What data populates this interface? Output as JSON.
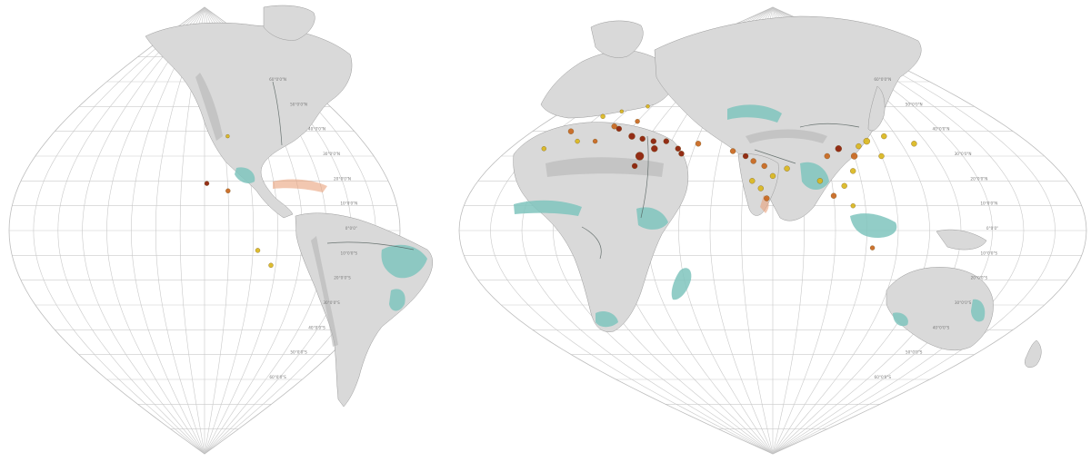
{
  "colors": {
    "site_dark": "#8b1a00",
    "site_orange": "#c8641a",
    "site_yellow": "#d9b61a",
    "teal_region": "#7fc4bd",
    "coast_region": "#e9a27b",
    "land": "#d9d9d9"
  },
  "lat_labels_left": [
    "60°0'0\"N",
    "50°0'0\"N",
    "40°0'0\"N",
    "30°0'0\"N",
    "20°0'0\"N",
    "10°0'0\"N",
    "0°0'0\"",
    "10°0'0\"S",
    "20°0'0\"S",
    "30°0'0\"S",
    "40°0'0\"S",
    "50°0'0\"S",
    "60°0'0\"S"
  ],
  "lat_labels_right": [
    "60°0'0\"N",
    "50°0'0\"N",
    "40°0'0\"N",
    "30°0'0\"N",
    "20°0'0\"N",
    "10°0'0\"N",
    "0°0'0\"",
    "10°0'0\"S",
    "20°0'0\"S",
    "30°0'0\"S",
    "40°0'0\"S",
    "50°0'0\"S",
    "60°0'0\"S"
  ],
  "sites": [
    {
      "lon": 15,
      "lat": 41,
      "class": "dark",
      "size": 3
    },
    {
      "lon": 23,
      "lat": 38,
      "class": "dark",
      "size": 3.5
    },
    {
      "lon": 28,
      "lat": 37,
      "class": "dark",
      "size": 3
    },
    {
      "lon": 33,
      "lat": 36,
      "class": "dark",
      "size": 3
    },
    {
      "lon": 35,
      "lat": 33,
      "class": "dark",
      "size": 3.5
    },
    {
      "lon": 38,
      "lat": 36,
      "class": "dark",
      "size": 3
    },
    {
      "lon": 31,
      "lat": 30,
      "class": "dark",
      "size": 4.5
    },
    {
      "lon": 31,
      "lat": 26,
      "class": "dark",
      "size": 3
    },
    {
      "lon": 44,
      "lat": 33,
      "class": "dark",
      "size": 3
    },
    {
      "lon": 46,
      "lat": 31,
      "class": "dark",
      "size": 3
    },
    {
      "lon": 51,
      "lat": 35,
      "class": "orange",
      "size": 3
    },
    {
      "lon": 12,
      "lat": 42,
      "class": "orange",
      "size": 3
    },
    {
      "lon": -4,
      "lat": 40,
      "class": "orange",
      "size": 3
    },
    {
      "lon": 2,
      "lat": 46,
      "class": "yellow",
      "size": 2.5
    },
    {
      "lon": 8,
      "lat": 48,
      "class": "yellow",
      "size": 2
    },
    {
      "lon": 18,
      "lat": 50,
      "class": "yellow",
      "size": 2
    },
    {
      "lon": 20,
      "lat": 44,
      "class": "orange",
      "size": 2.5
    },
    {
      "lon": 10,
      "lat": 36,
      "class": "orange",
      "size": 2.5
    },
    {
      "lon": 3,
      "lat": 36,
      "class": "yellow",
      "size": 2.5
    },
    {
      "lon": -7,
      "lat": 33,
      "class": "yellow",
      "size": 2.5
    },
    {
      "lon": 65,
      "lat": 32,
      "class": "orange",
      "size": 3
    },
    {
      "lon": 70,
      "lat": 30,
      "class": "dark",
      "size": 3
    },
    {
      "lon": 73,
      "lat": 28,
      "class": "orange",
      "size": 3
    },
    {
      "lon": 77,
      "lat": 26,
      "class": "orange",
      "size": 3
    },
    {
      "lon": 80,
      "lat": 22,
      "class": "yellow",
      "size": 3
    },
    {
      "lon": 76,
      "lat": 17,
      "class": "yellow",
      "size": 3
    },
    {
      "lon": 78,
      "lat": 13,
      "class": "orange",
      "size": 3
    },
    {
      "lon": 73,
      "lat": 20,
      "class": "yellow",
      "size": 3
    },
    {
      "lon": 85,
      "lat": 25,
      "class": "yellow",
      "size": 3
    },
    {
      "lon": 100,
      "lat": 30,
      "class": "orange",
      "size": 3
    },
    {
      "lon": 105,
      "lat": 33,
      "class": "dark",
      "size": 3.5
    },
    {
      "lon": 110,
      "lat": 30,
      "class": "orange",
      "size": 3.5
    },
    {
      "lon": 113,
      "lat": 34,
      "class": "yellow",
      "size": 3
    },
    {
      "lon": 117,
      "lat": 36,
      "class": "yellow",
      "size": 3.5
    },
    {
      "lon": 120,
      "lat": 30,
      "class": "yellow",
      "size": 3
    },
    {
      "lon": 108,
      "lat": 24,
      "class": "yellow",
      "size": 3
    },
    {
      "lon": 104,
      "lat": 18,
      "class": "yellow",
      "size": 3
    },
    {
      "lon": 100,
      "lat": 14,
      "class": "orange",
      "size": 3
    },
    {
      "lon": 96,
      "lat": 20,
      "class": "yellow",
      "size": 3
    },
    {
      "lon": 106,
      "lat": 10,
      "class": "yellow",
      "size": 2.5
    },
    {
      "lon": 112,
      "lat": -7,
      "class": "orange",
      "size": 2.5
    },
    {
      "lon": 125,
      "lat": 38,
      "class": "yellow",
      "size": 3
    },
    {
      "lon": 135,
      "lat": 35,
      "class": "yellow",
      "size": 3
    },
    {
      "lon": -99,
      "lat": 19,
      "class": "dark",
      "size": 2.5
    },
    {
      "lon": -90,
      "lat": 16,
      "class": "orange",
      "size": 2.5
    },
    {
      "lon": -88,
      "lat": 38,
      "class": "yellow",
      "size": 2
    },
    {
      "lon": -78,
      "lat": -8,
      "class": "yellow",
      "size": 2.5
    },
    {
      "lon": -72,
      "lat": -14,
      "class": "yellow",
      "size": 2.5
    }
  ]
}
